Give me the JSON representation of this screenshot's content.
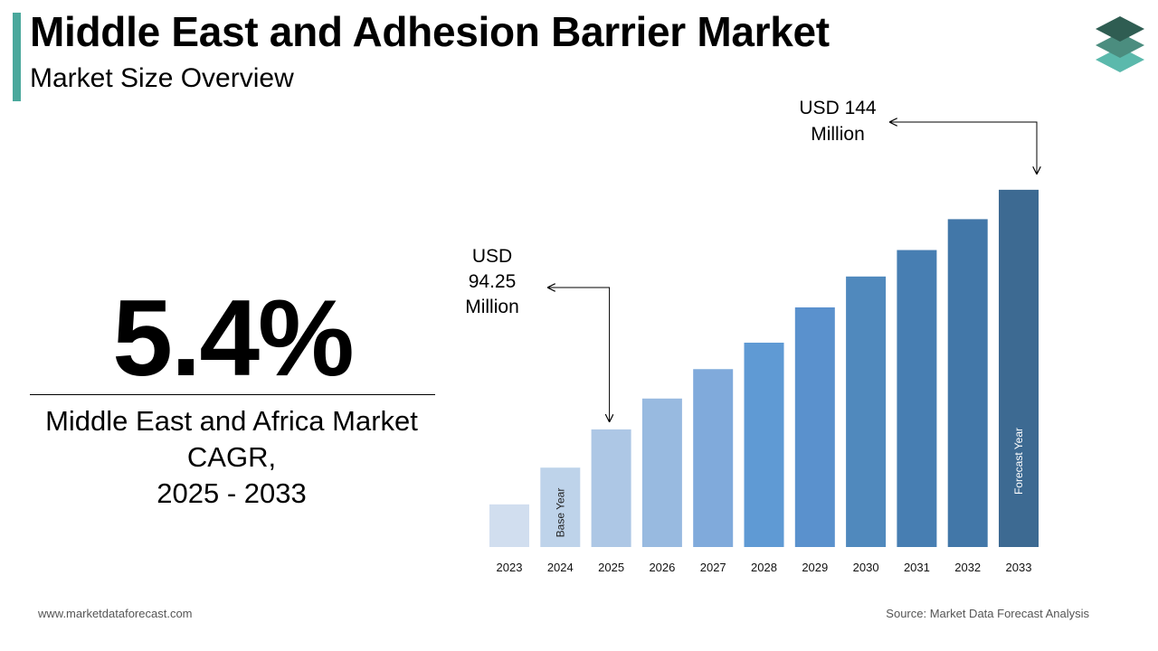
{
  "header": {
    "title": "Middle East and Adhesion Barrier Market",
    "subtitle": "Market Size Overview",
    "accent_color": "#4aa89c",
    "logo_icon": "stacked-layers-icon"
  },
  "cagr": {
    "value": "5.4%",
    "label_lines": [
      "Middle East and Africa Market",
      "CAGR,",
      "2025 - 2033"
    ]
  },
  "chart_data": {
    "type": "bar",
    "categories": [
      "2023",
      "2024",
      "2025",
      "2026",
      "2027",
      "2028",
      "2029",
      "2030",
      "2031",
      "2032",
      "2033"
    ],
    "values": [
      29,
      54,
      80,
      101,
      121,
      139,
      163,
      184,
      202,
      223,
      243
    ],
    "value_unit": "relative bar height (unlabeled axis)",
    "colors": [
      "#d1deef",
      "#bed3ea",
      "#adc7e5",
      "#98bae0",
      "#80aadb",
      "#5f9ad4",
      "#5a91cd",
      "#5089bd",
      "#477eb2",
      "#4277a8",
      "#3d6a92"
    ],
    "bar_labels": [
      {
        "index": 1,
        "text": "Base Year",
        "color": "#222222"
      },
      {
        "index": 10,
        "text": "Forecast Year",
        "color": "#ffffff"
      }
    ],
    "annotations": [
      {
        "index": 2,
        "lines": [
          "USD",
          "94.25",
          "Million"
        ]
      },
      {
        "index": 10,
        "lines": [
          "USD 144",
          "Million"
        ]
      }
    ],
    "axes_visible": false,
    "grid": false
  },
  "footer": {
    "website": "www.marketdataforecast.com",
    "source": "Source: Market Data Forecast Analysis"
  }
}
